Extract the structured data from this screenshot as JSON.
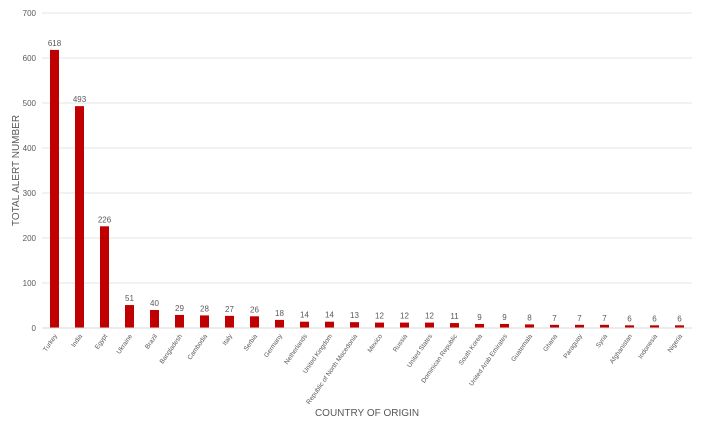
{
  "chart_data": {
    "type": "bar",
    "title": "",
    "xlabel": "COUNTRY OF ORIGIN",
    "ylabel": "TOTAL ALERT NUMBER",
    "ylim": [
      0,
      700
    ],
    "yticks": [
      0,
      100,
      200,
      300,
      400,
      500,
      600,
      700
    ],
    "grid": true,
    "legend": "none",
    "bar_color": "#c00000",
    "categories": [
      "Turkey",
      "India",
      "Egypt",
      "Ukraine",
      "Brazil",
      "Bangladesh",
      "Cambodia",
      "Italy",
      "Serbia",
      "Germany",
      "Netherlands",
      "United Kingdom",
      "Republic of North Macedonia",
      "Mexico",
      "Russia",
      "United States",
      "Dominican Republic",
      "South Korea",
      "United Arab Emirates",
      "Guatemala",
      "Ghana",
      "Paraguay",
      "Syria",
      "Afghanistan",
      "Indonesia",
      "Nigeria"
    ],
    "values": [
      618,
      493,
      226,
      51,
      40,
      29,
      28,
      27,
      26,
      18,
      14,
      14,
      13,
      12,
      12,
      12,
      11,
      9,
      9,
      8,
      7,
      7,
      7,
      6,
      6,
      6
    ]
  }
}
